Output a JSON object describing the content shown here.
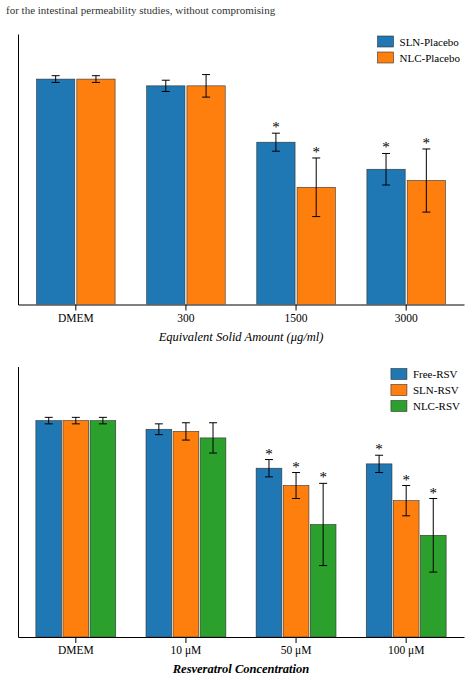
{
  "chart_data": [
    {
      "type": "bar",
      "title": "for the intestinal permeability studies, without compromising",
      "categories": [
        "DMEM",
        "300",
        "1500",
        "3000"
      ],
      "xlabel": "Equivalent Solid Amount (μg/ml)",
      "series": [
        {
          "name": "SLN-Placebo",
          "values": [
            100,
            97,
            72,
            60
          ],
          "errors": [
            1.5,
            2.5,
            4,
            7
          ],
          "significance": [
            null,
            null,
            "*",
            "*"
          ]
        },
        {
          "name": "NLC-Placebo",
          "values": [
            100,
            97,
            52,
            55
          ],
          "errors": [
            1.5,
            5,
            13,
            14
          ],
          "significance": [
            null,
            null,
            "*",
            "*"
          ]
        }
      ],
      "ylim": [
        0,
        120
      ],
      "tick_labels": "x",
      "legend": "upper right"
    },
    {
      "type": "bar",
      "categories": [
        "DMEM",
        "10 μM",
        "50 μM",
        "100 μM"
      ],
      "xlabel": "Resveratrol Concentration",
      "series": [
        {
          "name": "Free-RSV",
          "values": [
            100,
            96,
            78,
            80
          ],
          "errors": [
            1.5,
            2.5,
            4,
            4
          ],
          "significance": [
            null,
            null,
            "*",
            "*"
          ]
        },
        {
          "name": "SLN-RSV",
          "values": [
            100,
            95,
            70,
            63
          ],
          "errors": [
            1.5,
            4,
            6,
            7
          ],
          "significance": [
            null,
            null,
            "*",
            "*"
          ]
        },
        {
          "name": "NLC-RSV",
          "values": [
            100,
            92,
            52,
            47
          ],
          "errors": [
            1.5,
            7,
            19,
            17
          ],
          "significance": [
            null,
            null,
            "*",
            "*"
          ]
        }
      ],
      "ylim": [
        0,
        125
      ],
      "tick_labels": "x",
      "legend": "upper right"
    }
  ]
}
